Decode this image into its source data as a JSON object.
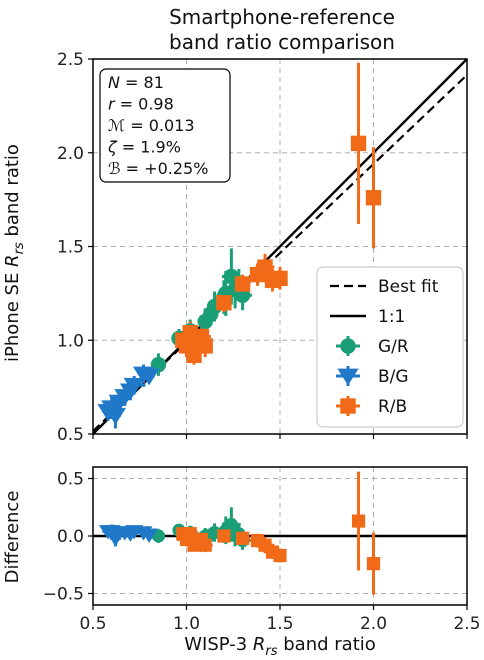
{
  "title": [
    "Smartphone-reference",
    "band ratio comparison"
  ],
  "xlabel": {
    "base": "WISP-3 ",
    "var": "R",
    "sub": "rs",
    "rest": " band ratio"
  },
  "ylabel_top": {
    "base": "iPhone SE ",
    "var": "R",
    "sub": "rs",
    "rest": " band ratio"
  },
  "ylabel_bottom": "Difference",
  "stats": [
    {
      "sym": "N",
      "text": " = 81"
    },
    {
      "sym": "r",
      "text": " = 0.98"
    },
    {
      "sym": "ℳ",
      "text": " = 0.013"
    },
    {
      "sym": "ζ",
      "text": " = 1.9%"
    },
    {
      "sym": "ℬ",
      "text": " = +0.25%"
    }
  ],
  "legend": [
    {
      "label": "Best fit",
      "style": "dashed"
    },
    {
      "label": "1:1",
      "style": "solid"
    },
    {
      "label": "G/R",
      "marker": "circle",
      "color": "#1a9e77"
    },
    {
      "label": "B/G",
      "marker": "triangle-down",
      "color": "#1f78c8"
    },
    {
      "label": "R/B",
      "marker": "square",
      "color": "#f06a17"
    }
  ],
  "colors": {
    "GR": "#1a9e77",
    "BG": "#1f78c8",
    "RB": "#f06a17",
    "grid": "#b0b0b0"
  },
  "chart_data": {
    "type": "scatter",
    "xlim": [
      0.5,
      2.5
    ],
    "ylim": [
      0.5,
      2.5
    ],
    "diff_ylim": [
      -0.6,
      0.6
    ],
    "xticks": [
      "0.5",
      "1.0",
      "1.5",
      "2.0",
      "2.5"
    ],
    "yticks": [
      "0.5",
      "1.0",
      "1.5",
      "2.0",
      "2.5"
    ],
    "diff_yticks": [
      "-0.5",
      "0.0",
      "0.5"
    ],
    "grid": true,
    "legend_position": "lower-right",
    "best_fit": {
      "slope": 0.95,
      "intercept": 0.04
    },
    "series": [
      {
        "name": "G/R",
        "marker": "circle",
        "color": "#1a9e77",
        "points": [
          {
            "x": 0.85,
            "y": 0.87,
            "xerr": 0.03,
            "yerr": 0.06,
            "d": 0.0
          },
          {
            "x": 0.96,
            "y": 1.01,
            "xerr": 0.03,
            "yerr": 0.05,
            "d": 0.05
          },
          {
            "x": 1.02,
            "y": 1.05,
            "xerr": 0.04,
            "yerr": 0.06,
            "d": 0.03
          },
          {
            "x": 1.1,
            "y": 1.1,
            "xerr": 0.04,
            "yerr": 0.07,
            "d": 0.0
          },
          {
            "x": 1.15,
            "y": 1.18,
            "xerr": 0.04,
            "yerr": 0.08,
            "d": 0.03
          },
          {
            "x": 1.2,
            "y": 1.23,
            "xerr": 0.04,
            "yerr": 0.09,
            "d": 0.03
          },
          {
            "x": 1.24,
            "y": 1.34,
            "xerr": 0.05,
            "yerr": 0.15,
            "d": 0.1
          },
          {
            "x": 1.26,
            "y": 1.27,
            "xerr": 0.05,
            "yerr": 0.1,
            "d": 0.01
          },
          {
            "x": 1.28,
            "y": 1.3,
            "xerr": 0.04,
            "yerr": 0.08,
            "d": 0.02
          },
          {
            "x": 1.3,
            "y": 1.24,
            "xerr": 0.05,
            "yerr": 0.08,
            "d": -0.04
          },
          {
            "x": 1.13,
            "y": 1.14,
            "xerr": 0.03,
            "yerr": 0.06,
            "d": 0.01
          },
          {
            "x": 1.21,
            "y": 1.25,
            "xerr": 0.04,
            "yerr": 0.12,
            "d": 0.05
          }
        ]
      },
      {
        "name": "B/G",
        "marker": "triangle-down",
        "color": "#1f78c8",
        "points": [
          {
            "x": 0.58,
            "y": 0.62,
            "xerr": 0.03,
            "yerr": 0.05,
            "d": 0.04
          },
          {
            "x": 0.6,
            "y": 0.64,
            "xerr": 0.03,
            "yerr": 0.06,
            "d": 0.04
          },
          {
            "x": 0.62,
            "y": 0.6,
            "xerr": 0.03,
            "yerr": 0.07,
            "d": -0.02
          },
          {
            "x": 0.64,
            "y": 0.67,
            "xerr": 0.03,
            "yerr": 0.05,
            "d": 0.03
          },
          {
            "x": 0.67,
            "y": 0.7,
            "xerr": 0.03,
            "yerr": 0.05,
            "d": 0.03
          },
          {
            "x": 0.7,
            "y": 0.73,
            "xerr": 0.03,
            "yerr": 0.05,
            "d": 0.02
          },
          {
            "x": 0.72,
            "y": 0.76,
            "xerr": 0.06,
            "yerr": 0.05,
            "d": 0.04
          },
          {
            "x": 0.77,
            "y": 0.82,
            "xerr": 0.03,
            "yerr": 0.05,
            "d": 0.03
          },
          {
            "x": 0.8,
            "y": 0.81,
            "xerr": 0.03,
            "yerr": 0.04,
            "d": 0.01
          }
        ]
      },
      {
        "name": "R/B",
        "marker": "square",
        "color": "#f06a17",
        "points": [
          {
            "x": 0.98,
            "y": 1.0,
            "xerr": 0.04,
            "yerr": 0.05,
            "d": 0.02
          },
          {
            "x": 1.0,
            "y": 0.97,
            "xerr": 0.05,
            "yerr": 0.06,
            "d": -0.03
          },
          {
            "x": 1.02,
            "y": 1.04,
            "xerr": 0.05,
            "yerr": 0.06,
            "d": 0.02
          },
          {
            "x": 1.04,
            "y": 0.92,
            "xerr": 0.03,
            "yerr": 0.05,
            "d": -0.08
          },
          {
            "x": 1.06,
            "y": 0.98,
            "xerr": 0.04,
            "yerr": 0.05,
            "d": -0.04
          },
          {
            "x": 1.08,
            "y": 1.02,
            "xerr": 0.05,
            "yerr": 0.06,
            "d": -0.03
          },
          {
            "x": 1.1,
            "y": 0.97,
            "xerr": 0.04,
            "yerr": 0.06,
            "d": -0.08
          },
          {
            "x": 1.2,
            "y": 1.2,
            "xerr": 0.04,
            "yerr": 0.05,
            "d": 0.0
          },
          {
            "x": 1.3,
            "y": 1.3,
            "xerr": 0.04,
            "yerr": 0.05,
            "d": -0.02
          },
          {
            "x": 1.38,
            "y": 1.35,
            "xerr": 0.04,
            "yerr": 0.06,
            "d": -0.04
          },
          {
            "x": 1.42,
            "y": 1.39,
            "xerr": 0.05,
            "yerr": 0.07,
            "d": -0.08
          },
          {
            "x": 1.46,
            "y": 1.32,
            "xerr": 0.04,
            "yerr": 0.06,
            "d": -0.14
          },
          {
            "x": 1.5,
            "y": 1.33,
            "xerr": 0.03,
            "yerr": 0.06,
            "d": -0.17
          },
          {
            "x": 1.92,
            "y": 2.05,
            "xerr": 0.03,
            "yerr": 0.43,
            "d": 0.13
          },
          {
            "x": 2.0,
            "y": 1.76,
            "xerr": 0.02,
            "yerr": 0.27,
            "d": -0.24
          }
        ]
      }
    ]
  }
}
